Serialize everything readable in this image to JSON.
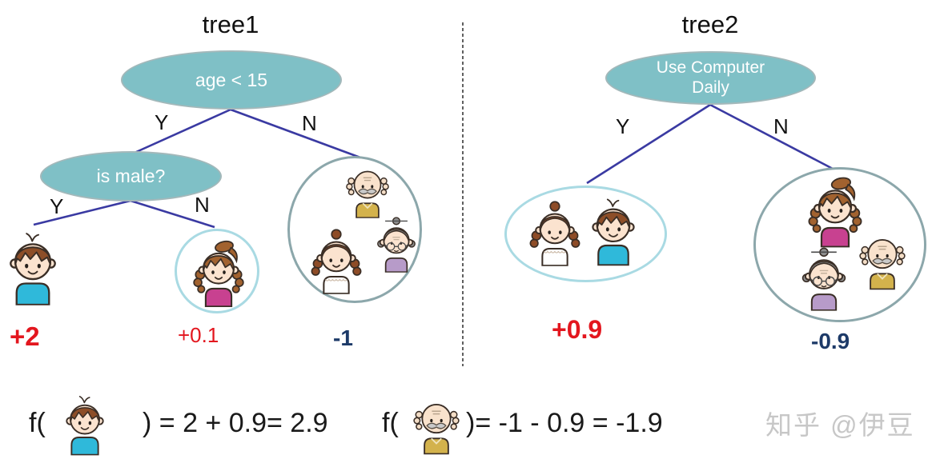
{
  "colors": {
    "node_fill": "#7fc0c6",
    "node_border": "#a3b8ba",
    "branch_line": "#3a3aa2",
    "light_circle": "#a9dae3",
    "group_circle": "#8ca7ab",
    "positive_score": "#e3161e",
    "negative_score": "#1d3a68",
    "watermark_gray": "#c7c7c7"
  },
  "tree1": {
    "title": "tree1",
    "root_label": "age < 15",
    "root_yes": "Y",
    "root_no": "N",
    "child_label": "is male?",
    "child_yes": "Y",
    "child_no": "N",
    "leaf_boy_members": [
      "boy"
    ],
    "leaf_boy_score": "+2",
    "leaf_girl_members": [
      "girl"
    ],
    "leaf_girl_score": "+0.1",
    "leaf_group_members": [
      "grandpa",
      "mother",
      "grandma"
    ],
    "leaf_group_score": "-1"
  },
  "tree2": {
    "title": "tree2",
    "root_label": "Use Computer Daily",
    "root_yes": "Y",
    "root_no": "N",
    "leaf_yes_members": [
      "mother",
      "boy"
    ],
    "leaf_yes_score": "+0.9",
    "leaf_no_members": [
      "girl",
      "grandma",
      "grandpa"
    ],
    "leaf_no_score": "-0.9"
  },
  "formulas": [
    {
      "prefix": "f(",
      "person": "boy",
      "suffix": ") = 2 + 0.9= 2.9"
    },
    {
      "prefix": "f(",
      "person": "grandpa",
      "suffix": ")= -1 - 0.9 = -1.9"
    }
  ],
  "watermark": "知乎 @伊豆"
}
